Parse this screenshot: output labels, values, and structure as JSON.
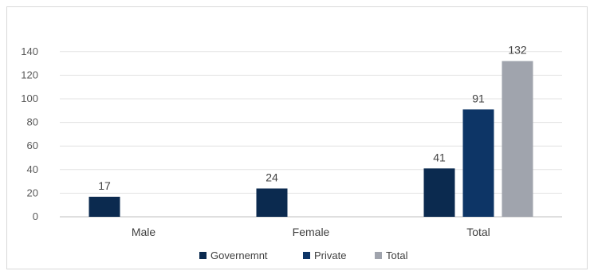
{
  "chart_data": {
    "type": "bar",
    "categories": [
      "Male",
      "Female",
      "Total"
    ],
    "series": [
      {
        "name": "Governemnt",
        "values": [
          17,
          24,
          41
        ],
        "color": "#0b2a4f"
      },
      {
        "name": "Private",
        "values": [
          null,
          null,
          91
        ],
        "color": "#0d3566"
      },
      {
        "name": "Total",
        "values": [
          null,
          null,
          132
        ],
        "color": "#a0a4ad"
      }
    ],
    "yticks": [
      0,
      20,
      40,
      60,
      80,
      100,
      120,
      140
    ],
    "ylim": [
      0,
      150
    ],
    "grid": true,
    "legend_position": "bottom"
  }
}
